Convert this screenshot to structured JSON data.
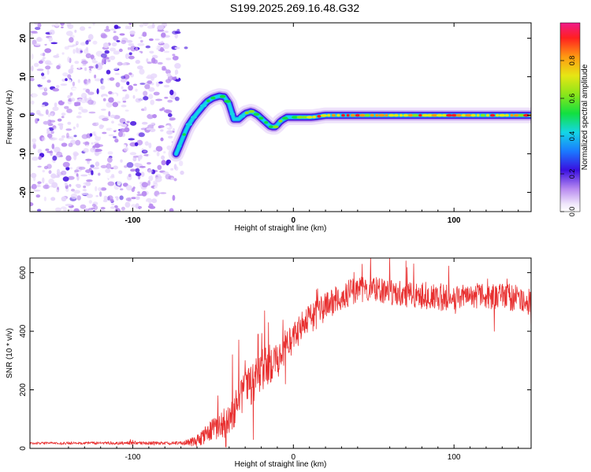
{
  "title": "S199.2025.269.16.48.G32",
  "colors": {
    "signal": "#e83030",
    "noise": "#7a2ee0",
    "axis": "#000000"
  },
  "chart_data": [
    {
      "type": "heatmap",
      "xlabel": "Height of straight line (km)",
      "ylabel": "Frequency (Hz)",
      "xlim": [
        -164,
        148
      ],
      "ylim": [
        -25,
        24
      ],
      "x_ticks": [
        -100,
        0,
        100
      ],
      "y_ticks": [
        -20,
        -10,
        0,
        10,
        20
      ],
      "noise_region_x": [
        -164,
        -72
      ],
      "ridge": {
        "x": [
          -73,
          -70,
          -66,
          -62,
          -58,
          -54,
          -50,
          -46,
          -43,
          -40,
          -37,
          -34,
          -30,
          -26,
          -22,
          -18,
          -14,
          -11,
          -8,
          -4,
          0,
          6,
          12,
          20,
          40,
          60,
          80,
          100,
          120,
          148
        ],
        "y": [
          -10,
          -7,
          -3,
          -0.5,
          1.5,
          3.5,
          4.5,
          5,
          4.8,
          3,
          -1,
          -1,
          0.5,
          1,
          0,
          -1.5,
          -3,
          -3,
          -1.5,
          -0.5,
          -0.5,
          -0.5,
          -0.5,
          0,
          0,
          0,
          0,
          0,
          0,
          0
        ]
      },
      "colorbar": {
        "label": "Normalized spectral amplitude",
        "range": [
          0,
          1
        ],
        "ticks": [
          0.0,
          0.2,
          0.4,
          0.6,
          0.8
        ]
      }
    },
    {
      "type": "line",
      "xlabel": "Height of straight line (km)",
      "ylabel": "SNR (10 * v/v)",
      "xlim": [
        -164,
        148
      ],
      "ylim": [
        0,
        650
      ],
      "x_ticks": [
        -100,
        0,
        100
      ],
      "y_ticks": [
        0,
        200,
        400,
        600
      ],
      "series": [
        {
          "name": "SNR",
          "trend": {
            "x": [
              -164,
              -130,
              -100,
              -70,
              -60,
              -55,
              -50,
              -45,
              -40,
              -35,
              -30,
              -25,
              -20,
              -15,
              -10,
              -5,
              0,
              5,
              10,
              15,
              20,
              25,
              30,
              40,
              50,
              60,
              80,
              100,
              120,
              148
            ],
            "y": [
              18,
              18,
              18,
              18,
              25,
              45,
              70,
              80,
              95,
              150,
              200,
              225,
              270,
              290,
              300,
              345,
              380,
              410,
              440,
              460,
              480,
              500,
              520,
              540,
              545,
              535,
              520,
              515,
              520,
              510
            ]
          },
          "noise_amplitude": {
            "x": [
              -164,
              -70,
              -60,
              -40,
              -20,
              0,
              40,
              148
            ],
            "y": [
              4,
              6,
              20,
              55,
              75,
              55,
              45,
              45
            ]
          },
          "spikes": [
            {
              "x": -47,
              "y": 180
            },
            {
              "x": -38,
              "y": 320
            },
            {
              "x": -34,
              "y": 370
            },
            {
              "x": -30,
              "y": 300
            },
            {
              "x": -22,
              "y": 390
            },
            {
              "x": -18,
              "y": 470
            },
            {
              "x": 48,
              "y": 660
            },
            {
              "x": 60,
              "y": 650
            },
            {
              "x": 70,
              "y": 640
            },
            {
              "x": 75,
              "y": 630
            }
          ],
          "dips": [
            {
              "x": -42,
              "y": 5
            },
            {
              "x": -25,
              "y": 30
            },
            {
              "x": -5,
              "y": 220
            },
            {
              "x": 125,
              "y": 400
            },
            {
              "x": 148,
              "y": 420
            }
          ]
        }
      ]
    }
  ]
}
